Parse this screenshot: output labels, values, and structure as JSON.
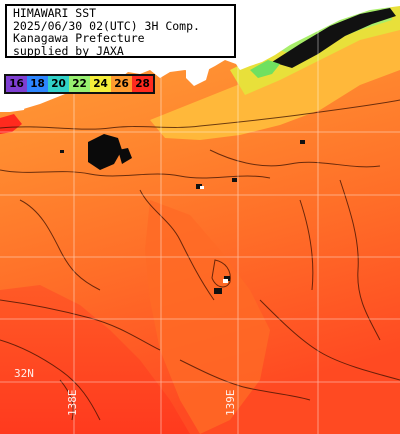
{
  "header": {
    "line1": "HIMAWARI SST",
    "line2": "2025/06/30 02(UTC) 3H Comp.",
    "line3": "Kanagawa Prefecture",
    "line4": "supplied by JAXA"
  },
  "legend": {
    "items": [
      {
        "label": "16",
        "color": "#7f3fd2"
      },
      {
        "label": "18",
        "color": "#2e86ff"
      },
      {
        "label": "20",
        "color": "#31d1c8"
      },
      {
        "label": "22",
        "color": "#98f070"
      },
      {
        "label": "24",
        "color": "#f5ee3a"
      },
      {
        "label": "26",
        "color": "#ff9a2e"
      },
      {
        "label": "28",
        "color": "#ff2a1e"
      }
    ]
  },
  "grid": {
    "lat_labels": [
      "32N"
    ],
    "lon_labels": [
      "138E",
      "139E"
    ]
  },
  "colors": {
    "land": "#ffffff",
    "cloud": "#000000",
    "warm_sea": "#ff6a2a",
    "mid_sea": "#ff8c32"
  }
}
